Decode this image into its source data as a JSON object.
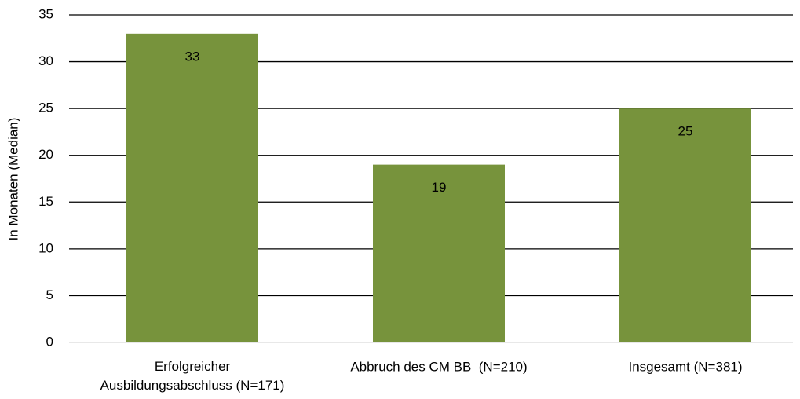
{
  "chart_data": {
    "type": "bar",
    "y_axis_label": "In Monaten (Median)",
    "categories": [
      "Erfolgreicher\nAusbildungsabschluss (N=171)",
      "Abbruch des CM BB  (N=210)",
      "Insgesamt (N=381)"
    ],
    "values": [
      33,
      19,
      25
    ],
    "color": "#77933c",
    "ylim": [
      0,
      35
    ],
    "yticks": [
      0,
      5,
      10,
      15,
      20,
      25,
      30,
      35
    ],
    "grid": true
  }
}
